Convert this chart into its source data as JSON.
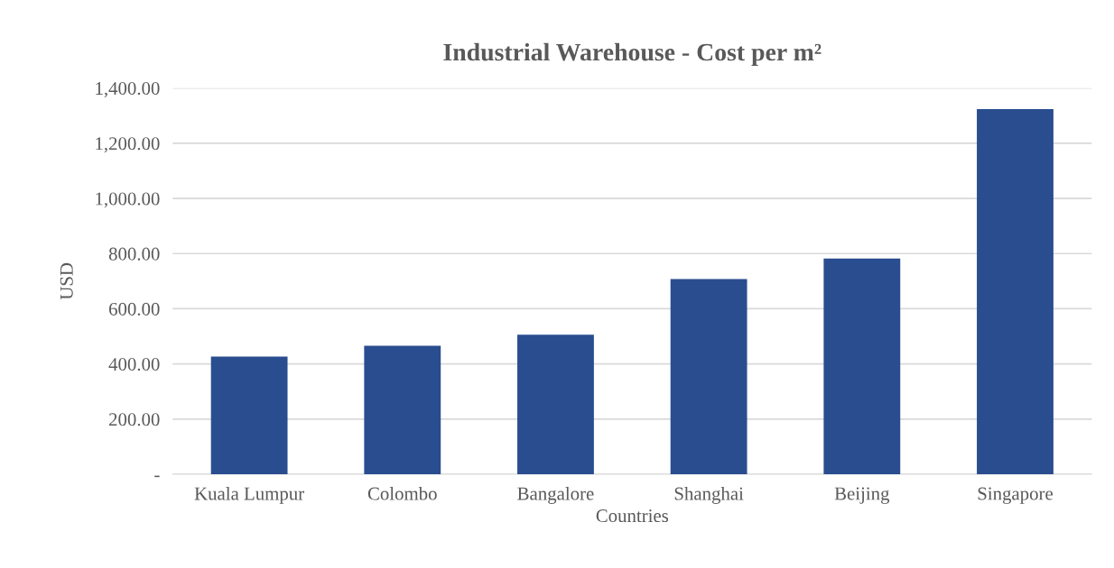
{
  "chart_data": {
    "type": "bar",
    "title": "Industrial Warehouse - Cost per m²",
    "xlabel": "Countries",
    "ylabel": "USD",
    "categories": [
      "Kuala Lumpur",
      "Colombo",
      "Bangalore",
      "Shanghai",
      "Beijing",
      "Singapore"
    ],
    "values": [
      427,
      466,
      506,
      708,
      782,
      1324
    ],
    "color": "#2a4d8f",
    "ylim": [
      0,
      1400
    ],
    "yticks": [
      {
        "value": 0,
        "label": "-"
      },
      {
        "value": 200,
        "label": "200.00"
      },
      {
        "value": 400,
        "label": "400.00"
      },
      {
        "value": 600,
        "label": "600.00"
      },
      {
        "value": 800,
        "label": "800.00"
      },
      {
        "value": 1000,
        "label": "1,000.00"
      },
      {
        "value": 1200,
        "label": "1,200.00"
      },
      {
        "value": 1400,
        "label": "1,400.00"
      }
    ],
    "grid": "y"
  }
}
